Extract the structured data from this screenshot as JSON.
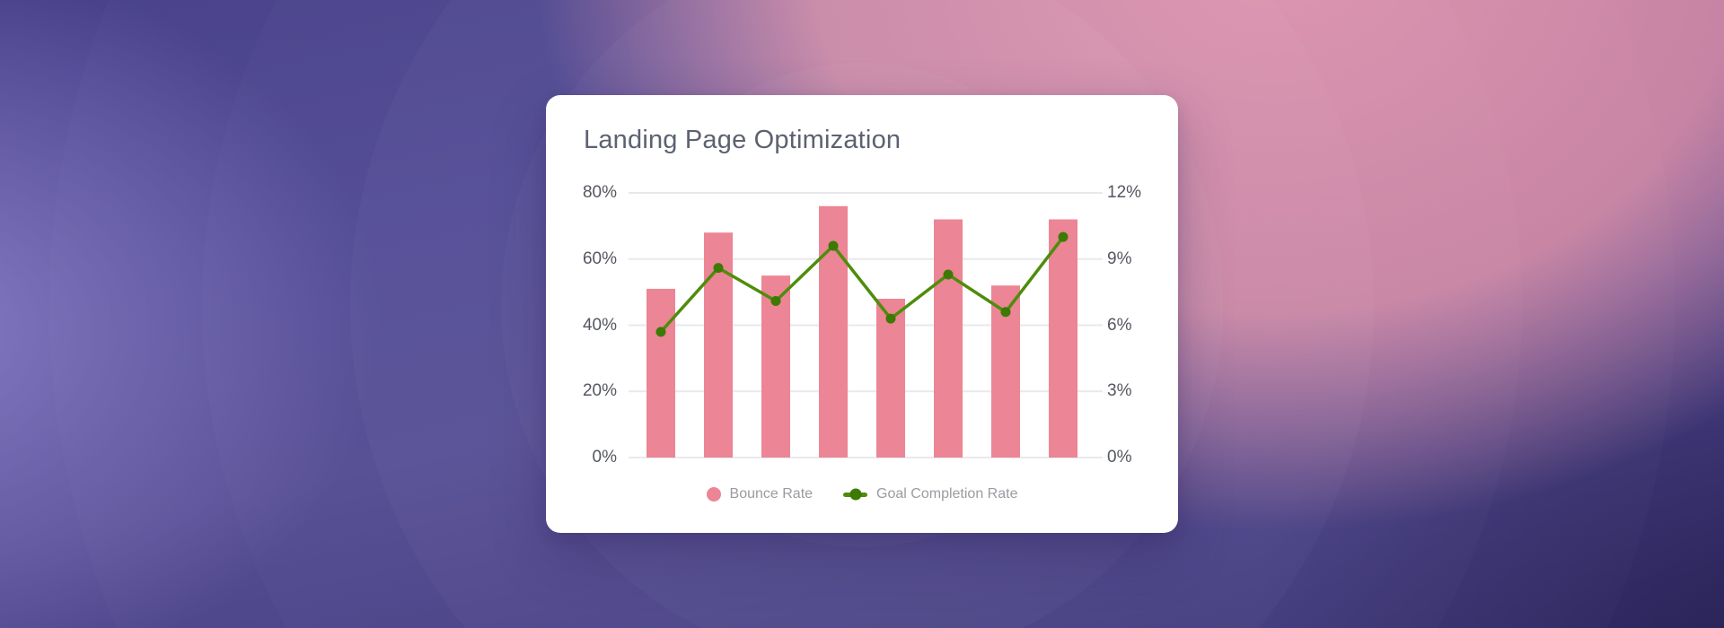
{
  "card": {
    "title": "Landing Page Optimization"
  },
  "chart_data": {
    "type": "combo",
    "title": "Landing Page Optimization",
    "x_count": 8,
    "categories": [
      "",
      "",
      "",
      "",
      "",
      "",
      "",
      ""
    ],
    "series": [
      {
        "name": "Bounce Rate",
        "type": "bar",
        "axis": "left",
        "color": "#ec8595",
        "values": [
          51,
          68,
          55,
          76,
          48,
          72,
          52,
          72
        ]
      },
      {
        "name": "Goal Completion Rate",
        "type": "line",
        "axis": "right",
        "color": "#4e8d0b",
        "point_color": "#3c7a04",
        "values": [
          5.7,
          8.6,
          7.1,
          9.6,
          6.3,
          8.3,
          6.6,
          10
        ]
      }
    ],
    "left_axis": {
      "min": 0,
      "max": 80,
      "ticks_top_down": [
        "80%",
        "60%",
        "40%",
        "20%",
        "0%"
      ],
      "unit": "%"
    },
    "right_axis": {
      "min": 0,
      "max": 12,
      "ticks_top_down": [
        "12%",
        "9%",
        "6%",
        "3%",
        "0%"
      ],
      "unit": "%"
    },
    "grid": true,
    "legend_position": "bottom"
  },
  "legend": {
    "items": [
      {
        "label": "Bounce Rate",
        "marker": "circle",
        "color": "#ec8595"
      },
      {
        "label": "Goal Completion Rate",
        "marker": "line-dot",
        "color": "#4e8d0b",
        "dot_color": "#3c7a04"
      }
    ]
  },
  "colors": {
    "card_bg": "#ffffff",
    "title_text": "#5c6270",
    "axis_label": "#54575f",
    "legend_label": "#9b9ba1",
    "gridline": "#e9e9ed",
    "bar_pink": "#ec8595",
    "line_green": "#4e8d0b",
    "point_green": "#3c7a04",
    "bg_top_left": "#474089",
    "bg_left_lavender": "#8b7fc7",
    "bg_bottom_left": "#38316f",
    "bg_pink_top_right": "#d98ca6",
    "bg_bottom_right": "#453e68"
  }
}
